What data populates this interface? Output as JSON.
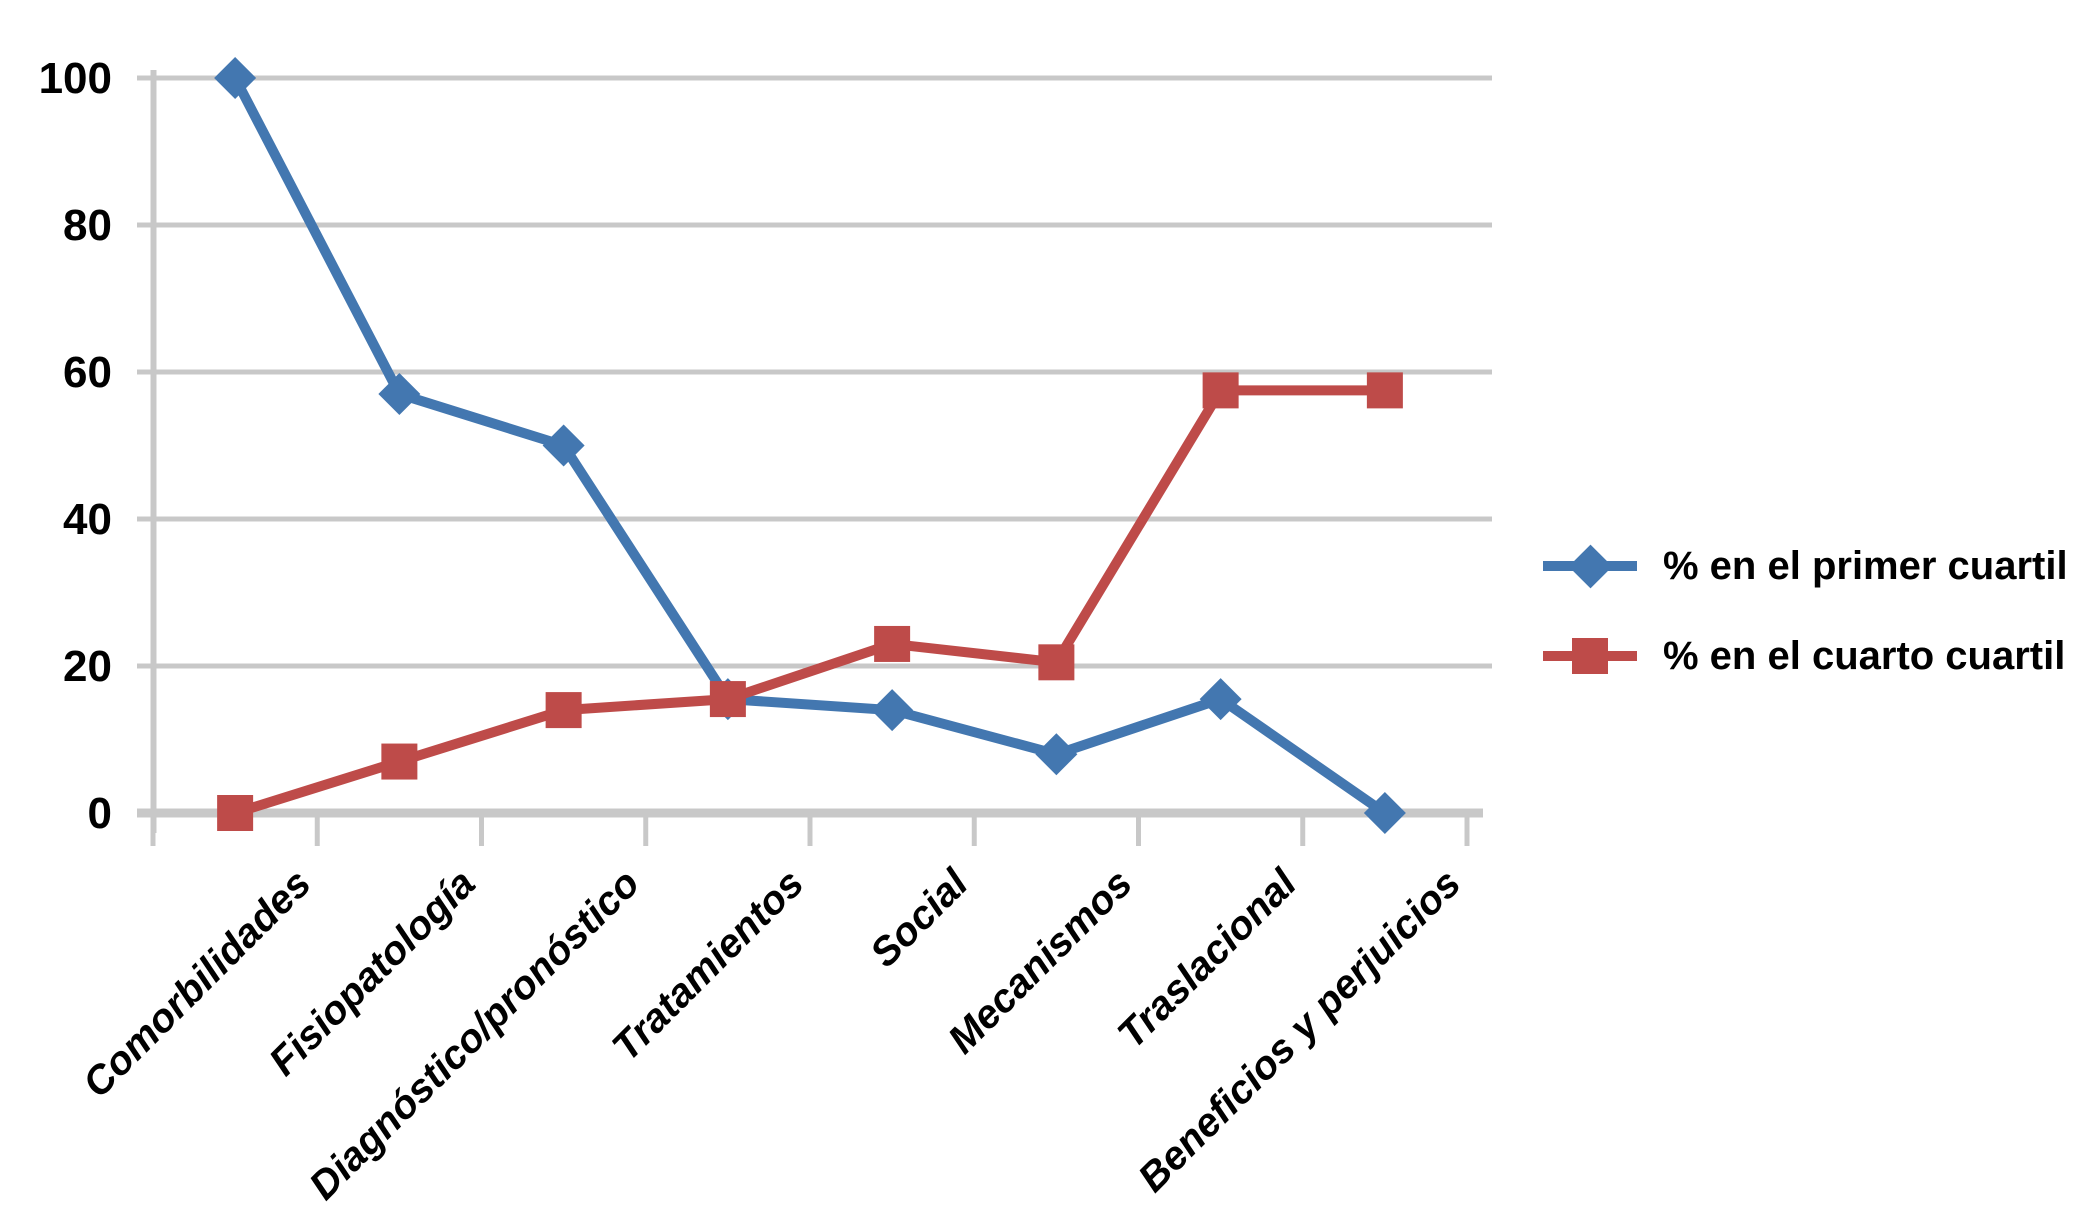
{
  "chart_data": {
    "type": "line",
    "categories": [
      "Comorbilidades",
      "Fisiopatología",
      "Diagnóstico/pronóstico",
      "Tratamientos",
      "Social",
      "Mecanismos",
      "Traslacional",
      "Beneficios y perjuicios"
    ],
    "series": [
      {
        "name": "% en el primer cuartil",
        "marker": "diamond",
        "color": "#4377B0",
        "values": [
          100,
          57,
          50,
          15.5,
          14,
          8,
          15.5,
          0
        ]
      },
      {
        "name": "% en el cuarto cuartil",
        "marker": "square",
        "color": "#BE4B49",
        "values": [
          0,
          7,
          14,
          15.5,
          23,
          20.5,
          57.5,
          57.5
        ]
      }
    ],
    "title": "",
    "xlabel": "",
    "ylabel": "",
    "ylim": [
      0,
      100
    ],
    "yticks": [
      0,
      20,
      40,
      60,
      80,
      100
    ],
    "grid": "horizontal",
    "grid_color": "#C8C8C8",
    "background": "#FFFFFF",
    "text_color": "#000000",
    "legend_position": "right"
  }
}
